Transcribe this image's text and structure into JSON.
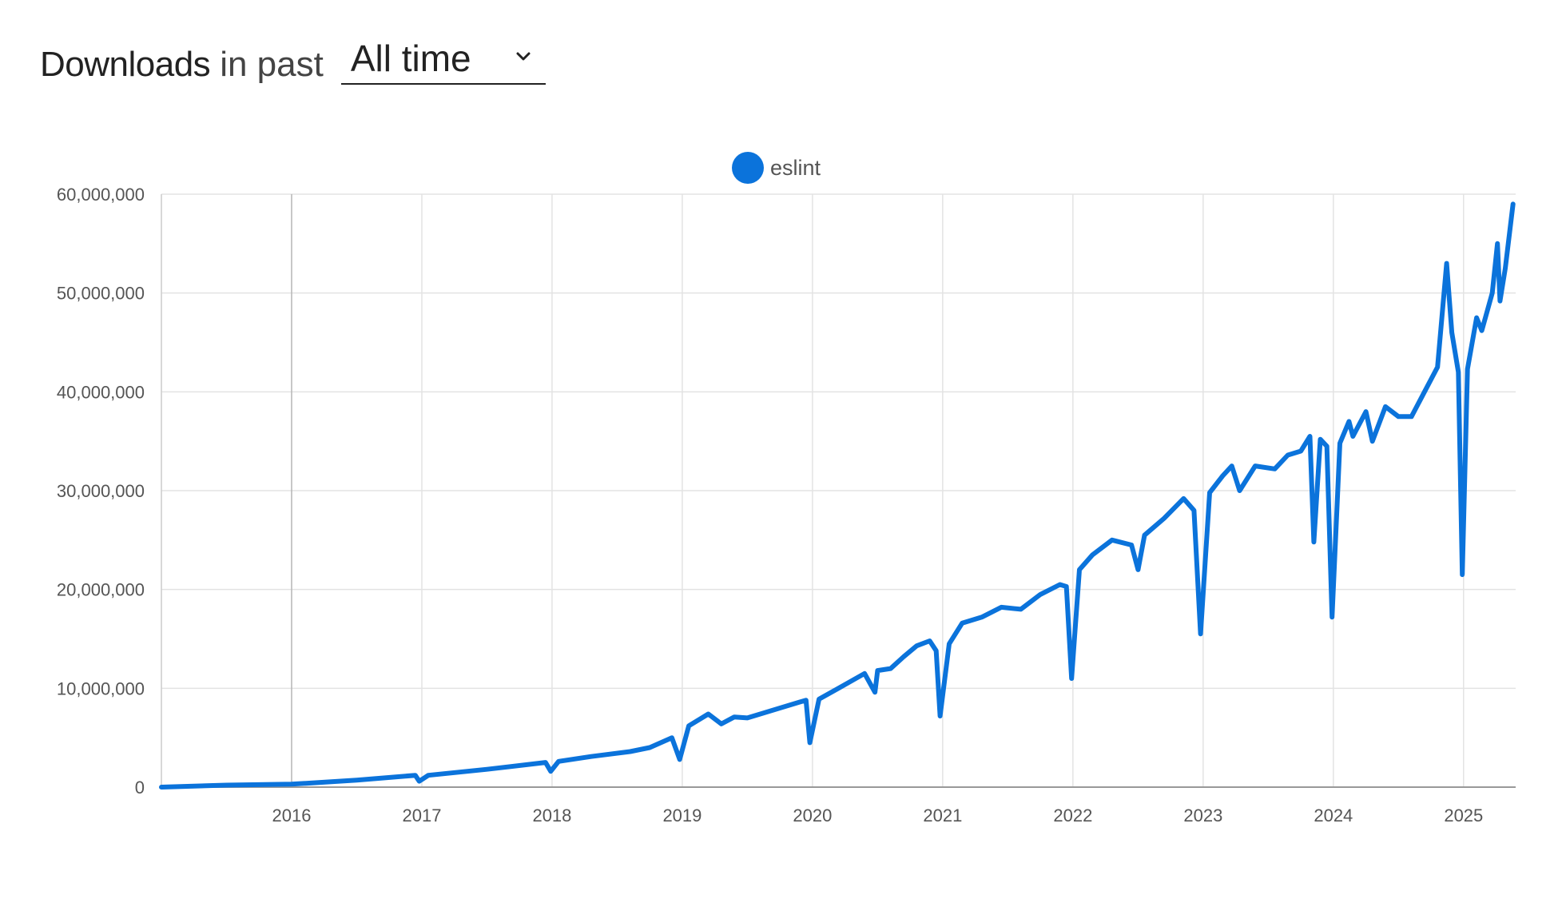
{
  "header": {
    "title_strong": "Downloads",
    "title_light": "in past",
    "period": {
      "selected": "All time"
    }
  },
  "colors": {
    "series": "#0b73db",
    "grid": "#e3e3e3",
    "axis": "#999999"
  },
  "icons": {
    "dropdown": "chevron-down-icon",
    "legend_marker": "circle-icon"
  },
  "chart_data": {
    "type": "line",
    "title": "",
    "xlabel": "",
    "ylabel": "",
    "legend_position": "top-center",
    "grid": true,
    "xlim": [
      2015.0,
      2025.4
    ],
    "ylim": [
      0,
      60000000
    ],
    "y_ticks": [
      {
        "value": 0,
        "label": "0"
      },
      {
        "value": 10000000,
        "label": "10,000,000"
      },
      {
        "value": 20000000,
        "label": "20,000,000"
      },
      {
        "value": 30000000,
        "label": "30,000,000"
      },
      {
        "value": 40000000,
        "label": "40,000,000"
      },
      {
        "value": 50000000,
        "label": "50,000,000"
      },
      {
        "value": 60000000,
        "label": "60,000,000"
      }
    ],
    "x_ticks": [
      {
        "value": 2016,
        "label": "2016"
      },
      {
        "value": 2017,
        "label": "2017"
      },
      {
        "value": 2018,
        "label": "2018"
      },
      {
        "value": 2019,
        "label": "2019"
      },
      {
        "value": 2020,
        "label": "2020"
      },
      {
        "value": 2021,
        "label": "2021"
      },
      {
        "value": 2022,
        "label": "2022"
      },
      {
        "value": 2023,
        "label": "2023"
      },
      {
        "value": 2024,
        "label": "2024"
      },
      {
        "value": 2025,
        "label": "2025"
      }
    ],
    "series": [
      {
        "name": "eslint",
        "color": "#0b73db",
        "x": [
          2015.0,
          2015.5,
          2016.0,
          2016.5,
          2016.95,
          2016.98,
          2017.05,
          2017.5,
          2017.95,
          2017.99,
          2018.05,
          2018.3,
          2018.6,
          2018.75,
          2018.92,
          2018.98,
          2019.05,
          2019.2,
          2019.3,
          2019.4,
          2019.5,
          2019.7,
          2019.9,
          2019.95,
          2019.98,
          2020.05,
          2020.2,
          2020.4,
          2020.48,
          2020.5,
          2020.6,
          2020.7,
          2020.8,
          2020.9,
          2020.95,
          2020.98,
          2021.05,
          2021.15,
          2021.3,
          2021.45,
          2021.6,
          2021.75,
          2021.9,
          2021.95,
          2021.99,
          2022.05,
          2022.15,
          2022.3,
          2022.45,
          2022.5,
          2022.55,
          2022.7,
          2022.85,
          2022.93,
          2022.98,
          2023.05,
          2023.15,
          2023.22,
          2023.28,
          2023.4,
          2023.55,
          2023.65,
          2023.75,
          2023.82,
          2023.85,
          2023.9,
          2023.95,
          2023.99,
          2024.05,
          2024.12,
          2024.15,
          2024.25,
          2024.3,
          2024.4,
          2024.5,
          2024.6,
          2024.7,
          2024.8,
          2024.87,
          2024.91,
          2024.96,
          2024.99,
          2025.03,
          2025.1,
          2025.14,
          2025.22,
          2025.26,
          2025.28,
          2025.32,
          2025.38
        ],
        "values": [
          0,
          200000,
          300000,
          700000,
          1200000,
          600000,
          1200000,
          1800000,
          2500000,
          1600000,
          2600000,
          3100000,
          3600000,
          4000000,
          5000000,
          2800000,
          6200000,
          7400000,
          6400000,
          7100000,
          7000000,
          7800000,
          8600000,
          8800000,
          4500000,
          8900000,
          10000000,
          11500000,
          9600000,
          11800000,
          12000000,
          13200000,
          14300000,
          14800000,
          13800000,
          7200000,
          14500000,
          16600000,
          17200000,
          18200000,
          18000000,
          19500000,
          20500000,
          20300000,
          11000000,
          22000000,
          23500000,
          25000000,
          24500000,
          22000000,
          25500000,
          27200000,
          29200000,
          28000000,
          15500000,
          29800000,
          31500000,
          32500000,
          30000000,
          32500000,
          32200000,
          33600000,
          34000000,
          35500000,
          24800000,
          35200000,
          34500000,
          17200000,
          34800000,
          37000000,
          35500000,
          38000000,
          35000000,
          38500000,
          37500000,
          37500000,
          40000000,
          42500000,
          53000000,
          46000000,
          42000000,
          21500000,
          42300000,
          47500000,
          46200000,
          50000000,
          55000000,
          49200000,
          52500000,
          59000000
        ]
      }
    ]
  }
}
